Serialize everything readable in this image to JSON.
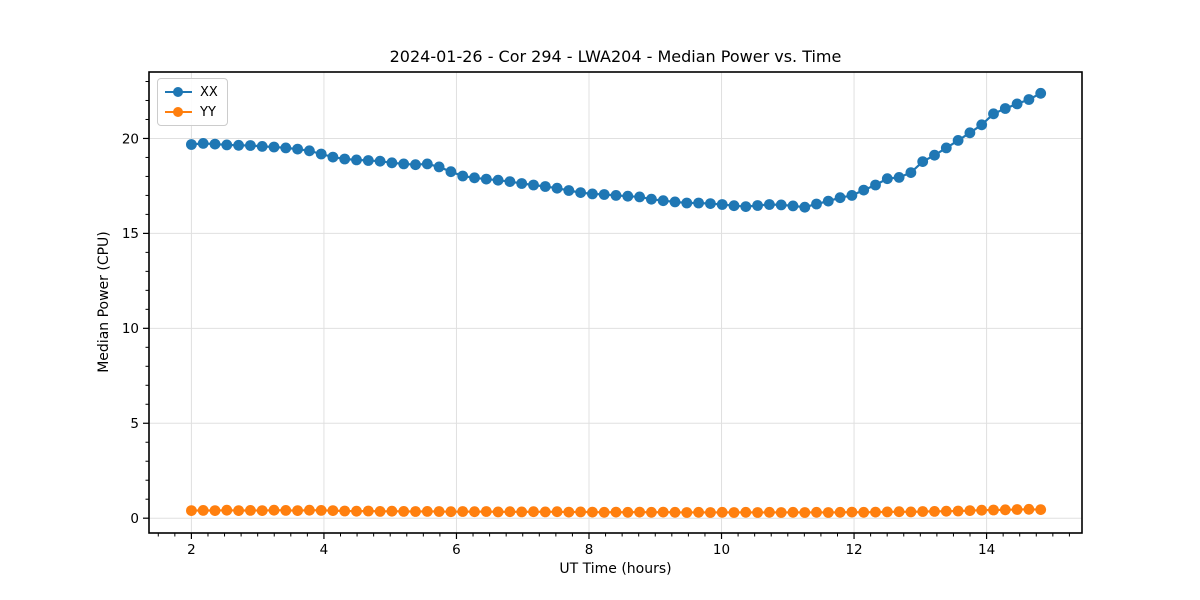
{
  "figure": {
    "background": "#ffffff"
  },
  "chart_data": {
    "type": "line",
    "title": "2024-01-26 - Cor 294 - LWA204 - Median Power vs. Time",
    "xlabel": "UT Time (hours)",
    "ylabel": "Median Power (CPU)",
    "xlim": [
      1.36,
      15.44
    ],
    "ylim": [
      -0.78,
      23.5
    ],
    "xticks": [
      2,
      4,
      6,
      8,
      10,
      12,
      14
    ],
    "yticks": [
      0,
      5,
      10,
      15,
      20
    ],
    "minor_xtick_step": 0.25,
    "minor_ytick_step": 1,
    "grid": true,
    "grid_color": "#e0e0e0",
    "axis_color": "#000000",
    "legend_position": "upper-left",
    "x_start": 2.0,
    "x_step": 0.178,
    "series": [
      {
        "name": "XX",
        "color": "#1f77b4",
        "marker": "circle",
        "values": [
          19.68,
          19.74,
          19.7,
          19.66,
          19.64,
          19.63,
          19.58,
          19.55,
          19.5,
          19.44,
          19.35,
          19.18,
          19.02,
          18.92,
          18.87,
          18.84,
          18.8,
          18.72,
          18.66,
          18.62,
          18.66,
          18.5,
          18.25,
          18.02,
          17.93,
          17.86,
          17.8,
          17.73,
          17.63,
          17.55,
          17.47,
          17.38,
          17.26,
          17.15,
          17.08,
          17.05,
          17.0,
          16.96,
          16.92,
          16.8,
          16.72,
          16.66,
          16.6,
          16.6,
          16.57,
          16.52,
          16.46,
          16.41,
          16.47,
          16.52,
          16.5,
          16.45,
          16.38,
          16.55,
          16.7,
          16.88,
          17.0,
          17.28,
          17.55,
          17.88,
          17.95,
          18.2,
          18.78,
          19.12,
          19.5,
          19.9,
          20.3,
          20.72,
          21.3,
          21.58,
          21.82,
          22.05,
          22.38
        ]
      },
      {
        "name": "YY",
        "color": "#ff7f0e",
        "marker": "circle",
        "values": [
          0.4,
          0.41,
          0.4,
          0.42,
          0.4,
          0.41,
          0.4,
          0.42,
          0.41,
          0.4,
          0.42,
          0.41,
          0.4,
          0.38,
          0.37,
          0.38,
          0.36,
          0.37,
          0.36,
          0.35,
          0.36,
          0.35,
          0.34,
          0.35,
          0.34,
          0.35,
          0.33,
          0.34,
          0.33,
          0.34,
          0.33,
          0.34,
          0.32,
          0.33,
          0.32,
          0.31,
          0.32,
          0.31,
          0.32,
          0.31,
          0.32,
          0.31,
          0.3,
          0.31,
          0.3,
          0.31,
          0.3,
          0.31,
          0.3,
          0.31,
          0.3,
          0.31,
          0.3,
          0.31,
          0.3,
          0.31,
          0.32,
          0.31,
          0.32,
          0.33,
          0.34,
          0.33,
          0.35,
          0.36,
          0.37,
          0.38,
          0.4,
          0.42,
          0.43,
          0.44,
          0.46,
          0.47,
          0.45
        ]
      }
    ]
  }
}
